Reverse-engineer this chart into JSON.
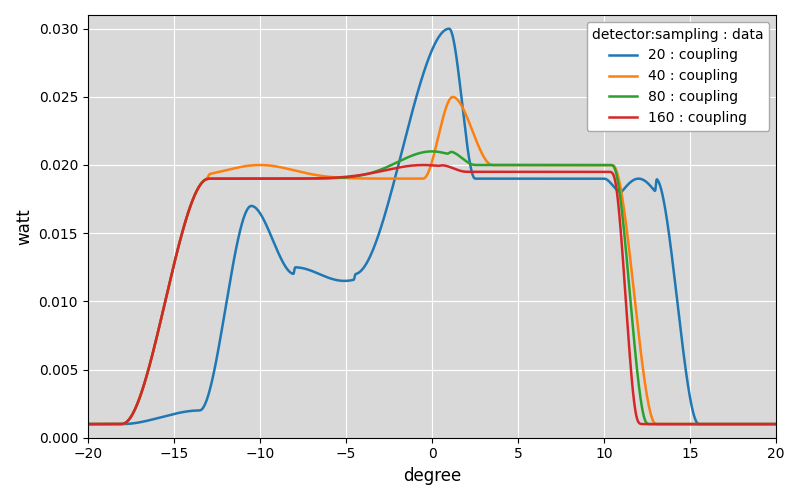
{
  "title": "",
  "xlabel": "degree",
  "ylabel": "watt",
  "xlim": [
    -20,
    20
  ],
  "ylim": [
    0.0,
    0.031
  ],
  "yticks": [
    0.0,
    0.005,
    0.01,
    0.015,
    0.02,
    0.025,
    0.03
  ],
  "xticks": [
    -20,
    -15,
    -10,
    -5,
    0,
    5,
    10,
    15,
    20
  ],
  "legend_title": "detector:sampling : data",
  "series": [
    {
      "label": "20 : coupling",
      "color": "#1f77b4",
      "n": 20
    },
    {
      "label": "40 : coupling",
      "color": "#ff7f0e",
      "n": 40
    },
    {
      "label": "80 : coupling",
      "color": "#2ca02c",
      "n": 80
    },
    {
      "label": "160 : coupling",
      "color": "#d62728",
      "n": 160
    }
  ],
  "background_color": "#d9d9d9",
  "grid_color": "#ffffff",
  "figsize": [
    8.0,
    5.0
  ],
  "dpi": 100
}
